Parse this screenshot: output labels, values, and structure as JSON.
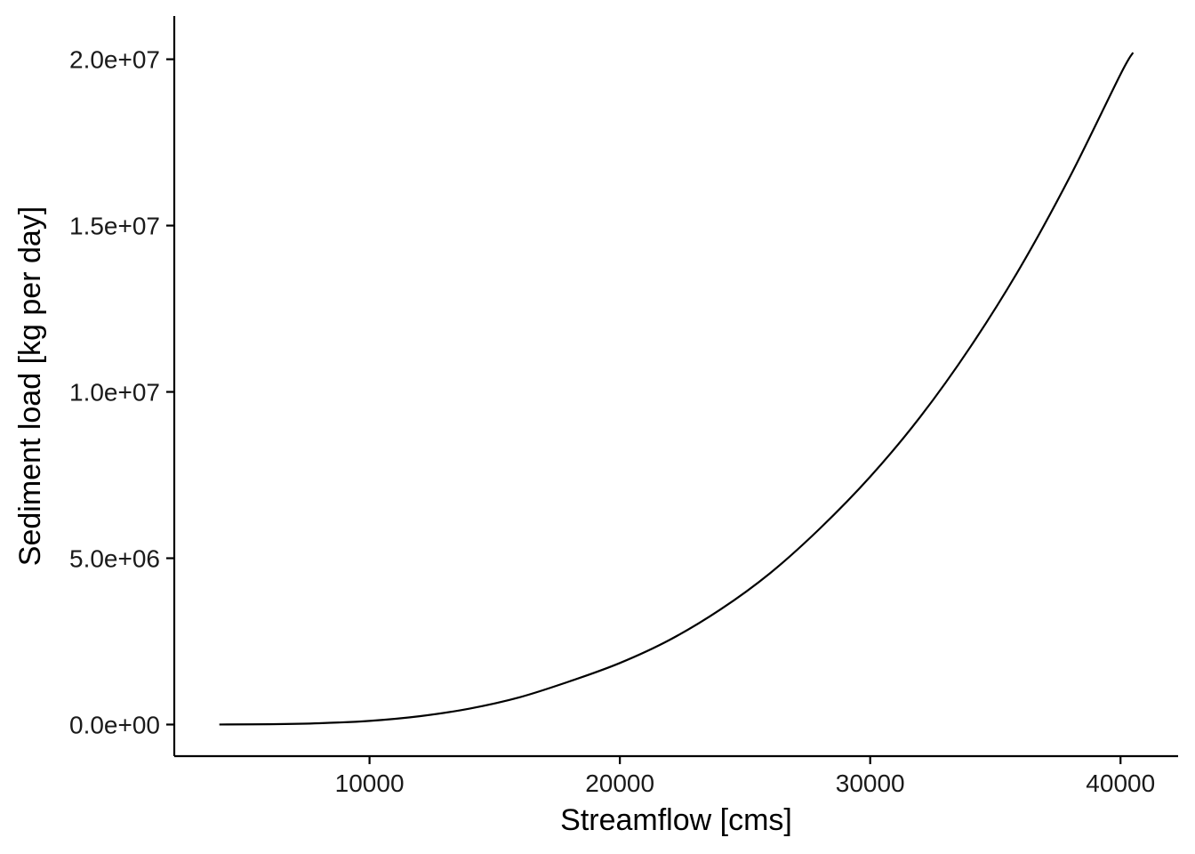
{
  "chart_data": {
    "type": "line",
    "title": "",
    "xlabel": "Streamflow [cms]",
    "ylabel": "Sediment load [kg per day]",
    "xlim": [
      2200,
      42300
    ],
    "ylim": [
      -950000,
      21300000
    ],
    "x_ticks": [
      10000,
      20000,
      30000,
      40000
    ],
    "x_tick_labels": [
      "10000",
      "20000",
      "30000",
      "40000"
    ],
    "y_ticks": [
      0,
      5000000,
      10000000,
      15000000,
      20000000
    ],
    "y_tick_labels": [
      "0.0e+00",
      "5.0e+06",
      "1.0e+07",
      "1.5e+07",
      "2.0e+07"
    ],
    "grid": false,
    "legend": "none",
    "line_color": "#000000",
    "series": [
      {
        "x": [
          4000,
          6000,
          8000,
          10000,
          12000,
          14000,
          16000,
          18000,
          20000,
          22000,
          24000,
          26000,
          28000,
          30000,
          32000,
          34000,
          36000,
          38000,
          40000,
          40500
        ],
        "y": [
          1300,
          10000,
          40000,
          110000,
          250000,
          480000,
          820000,
          1300000,
          1850000,
          2550000,
          3450000,
          4550000,
          5900000,
          7450000,
          9250000,
          11350000,
          13750000,
          16500000,
          19550000,
          20200000
        ]
      }
    ]
  }
}
